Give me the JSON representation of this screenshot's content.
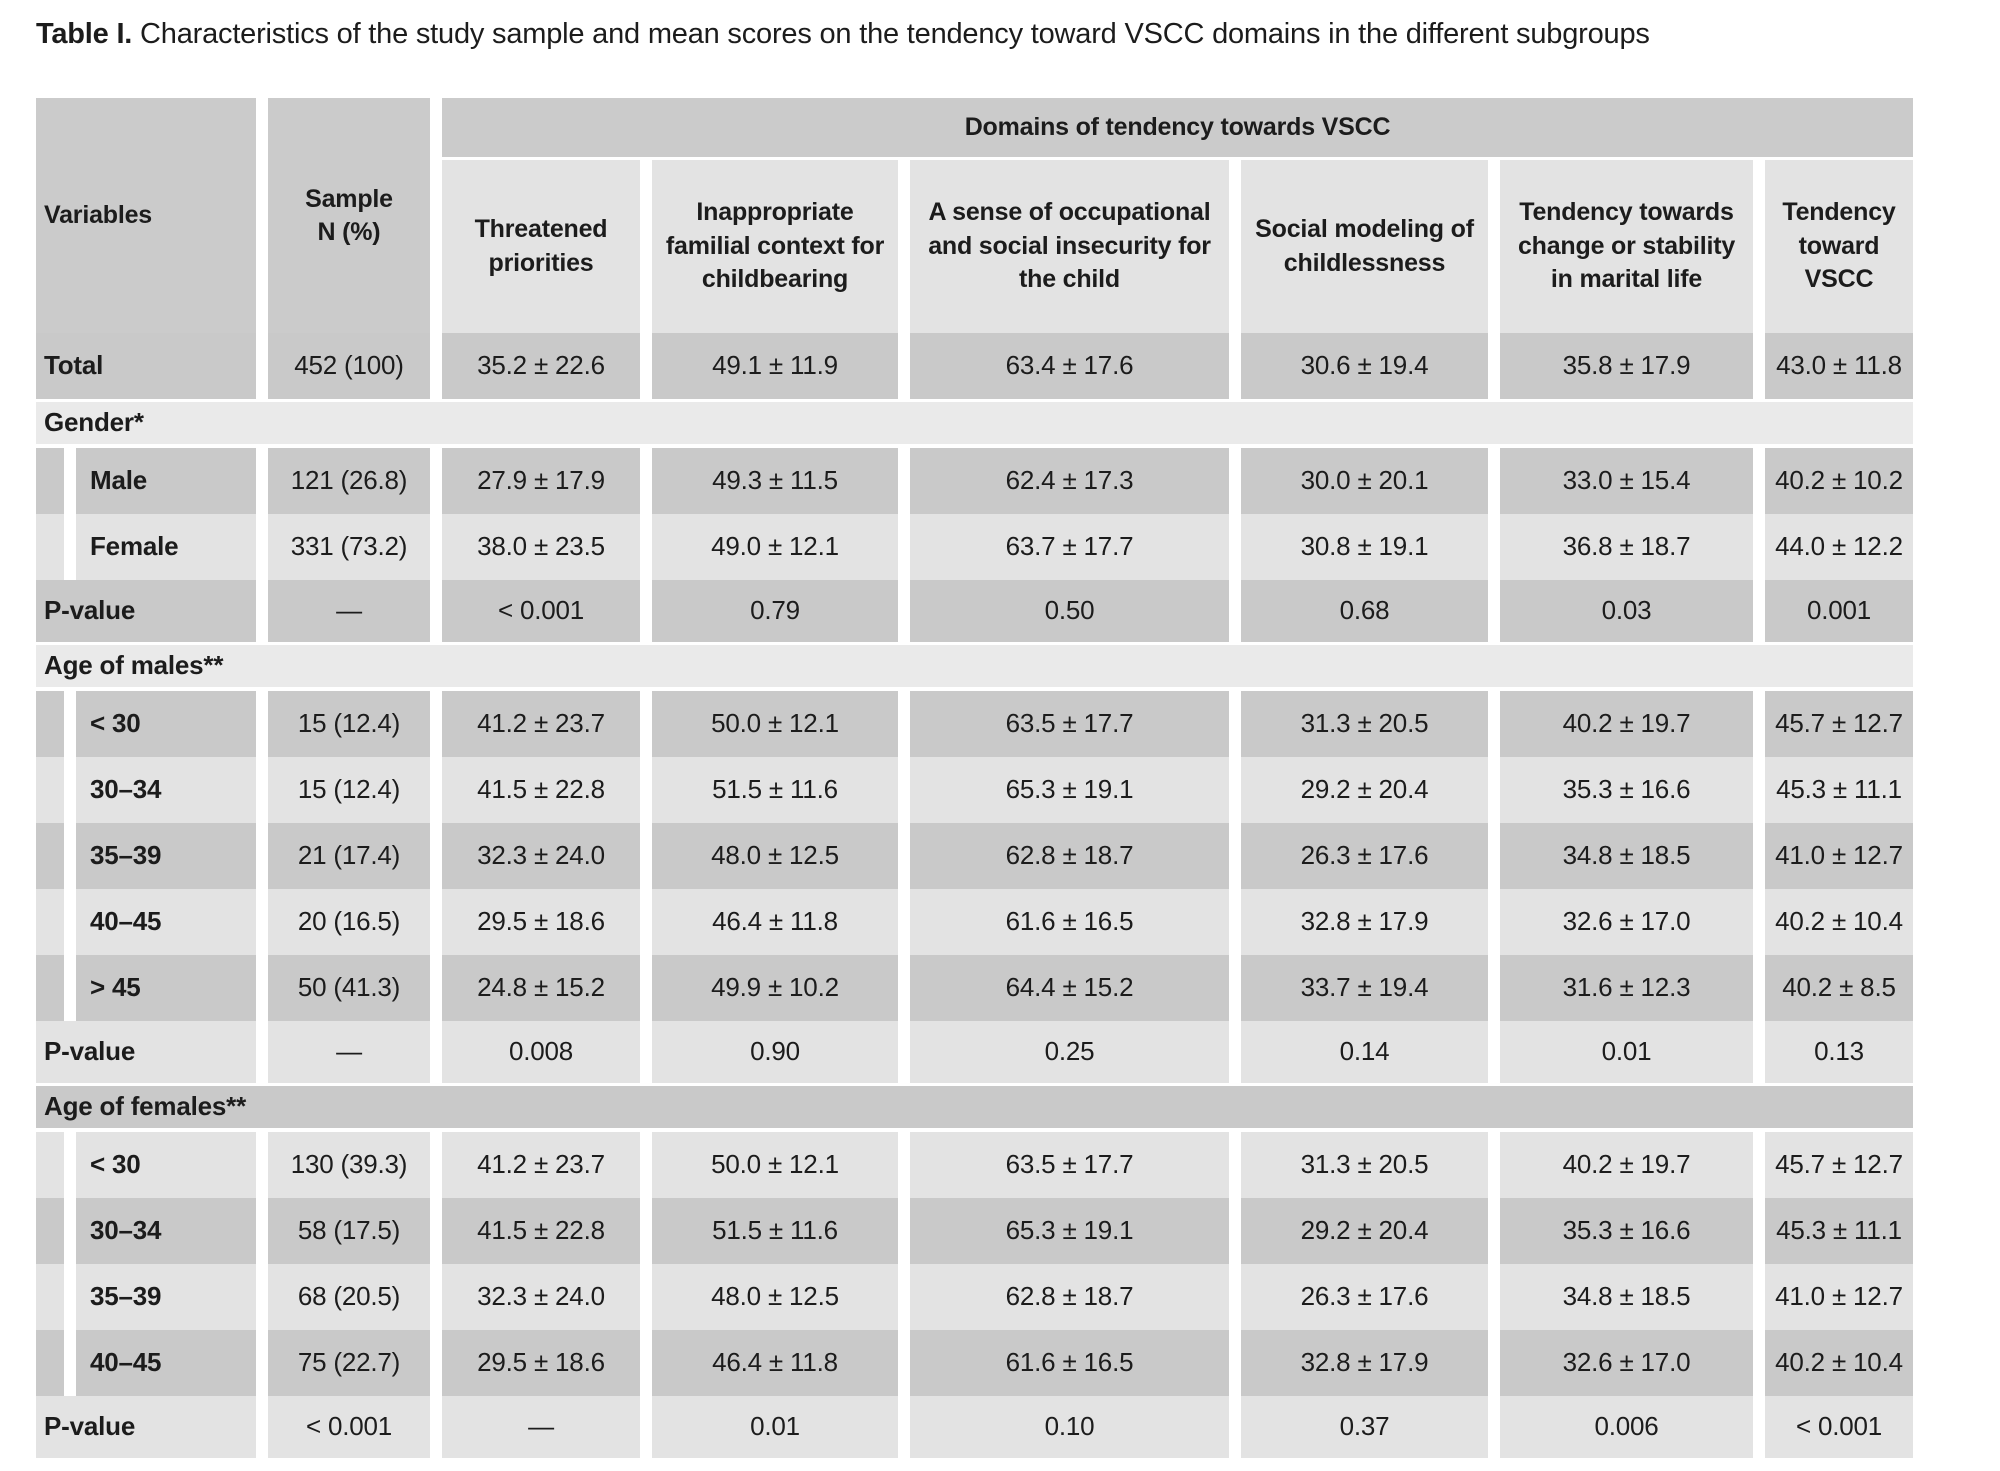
{
  "title": {
    "label": "Table I.",
    "text": " Characteristics of the study sample and mean scores on the tendency toward VSCC domains in the different subgroups"
  },
  "table": {
    "header": {
      "variables": "Variables",
      "sample": "Sample\nN (%)",
      "domains_group": "Domains of tendency towards VSCC",
      "domain_columns": [
        "Threatened priorities",
        "Inappropriate familial context for childbearing",
        "A sense of occupational and social insecurity for the child",
        "Social modeling of childlessness",
        "Tendency towards change or stability in marital life",
        "Tendency toward VSCC"
      ]
    },
    "rows": [
      {
        "type": "data",
        "shade": "dark",
        "indent": false,
        "label": "Total",
        "values": [
          "452 (100)",
          "35.2 ± 22.6",
          "49.1 ± 11.9",
          "63.4 ± 17.6",
          "30.6 ± 19.4",
          "35.8 ± 17.9",
          "43.0 ± 11.8"
        ]
      },
      {
        "type": "band",
        "shade": "light",
        "label": "Gender*"
      },
      {
        "type": "data",
        "shade": "dark",
        "indent": true,
        "label": "Male",
        "values": [
          "121 (26.8)",
          "27.9 ± 17.9",
          "49.3 ± 11.5",
          "62.4 ± 17.3",
          "30.0 ± 20.1",
          "33.0 ± 15.4",
          "40.2 ± 10.2"
        ]
      },
      {
        "type": "data",
        "shade": "light",
        "indent": true,
        "label": "Female",
        "values": [
          "331 (73.2)",
          "38.0 ± 23.5",
          "49.0 ± 12.1",
          "63.7 ± 17.7",
          "30.8 ± 19.1",
          "36.8 ± 18.7",
          "44.0 ± 12.2"
        ]
      },
      {
        "type": "pvalue",
        "shade": "dark",
        "indent": false,
        "label": "P-value",
        "values": [
          "—",
          "< 0.001",
          "0.79",
          "0.50",
          "0.68",
          "0.03",
          "0.001"
        ]
      },
      {
        "type": "band",
        "shade": "light",
        "label": "Age of males**"
      },
      {
        "type": "data",
        "shade": "dark",
        "indent": true,
        "label": "< 30",
        "values": [
          "15 (12.4)",
          "41.2 ± 23.7",
          "50.0 ± 12.1",
          "63.5 ± 17.7",
          "31.3 ± 20.5",
          "40.2 ± 19.7",
          "45.7 ± 12.7"
        ]
      },
      {
        "type": "data",
        "shade": "light",
        "indent": true,
        "label": "30–34",
        "values": [
          "15 (12.4)",
          "41.5 ± 22.8",
          "51.5 ± 11.6",
          "65.3 ± 19.1",
          "29.2 ± 20.4",
          "35.3 ± 16.6",
          "45.3 ± 11.1"
        ]
      },
      {
        "type": "data",
        "shade": "dark",
        "indent": true,
        "label": "35–39",
        "values": [
          "21 (17.4)",
          "32.3 ± 24.0",
          "48.0 ± 12.5",
          "62.8 ± 18.7",
          "26.3 ± 17.6",
          "34.8 ± 18.5",
          "41.0 ± 12.7"
        ]
      },
      {
        "type": "data",
        "shade": "light",
        "indent": true,
        "label": "40–45",
        "values": [
          "20 (16.5)",
          "29.5 ± 18.6",
          "46.4 ± 11.8",
          "61.6 ± 16.5",
          "32.8 ± 17.9",
          "32.6 ± 17.0",
          "40.2 ± 10.4"
        ]
      },
      {
        "type": "data",
        "shade": "dark",
        "indent": true,
        "label": "> 45",
        "values": [
          "50 (41.3)",
          "24.8 ± 15.2",
          "49.9 ± 10.2",
          "64.4 ± 15.2",
          "33.7 ± 19.4",
          "31.6 ± 12.3",
          "40.2 ± 8.5"
        ]
      },
      {
        "type": "pvalue",
        "shade": "light",
        "indent": false,
        "label": "P-value",
        "values": [
          "—",
          "0.008",
          "0.90",
          "0.25",
          "0.14",
          "0.01",
          "0.13"
        ]
      },
      {
        "type": "band",
        "shade": "dark",
        "label": "Age of females**"
      },
      {
        "type": "data",
        "shade": "light",
        "indent": true,
        "label": "< 30",
        "values": [
          "130 (39.3)",
          "41.2 ± 23.7",
          "50.0 ± 12.1",
          "63.5 ± 17.7",
          "31.3 ± 20.5",
          "40.2 ± 19.7",
          "45.7 ± 12.7"
        ]
      },
      {
        "type": "data",
        "shade": "dark",
        "indent": true,
        "label": "30–34",
        "values": [
          "58 (17.5)",
          "41.5 ± 22.8",
          "51.5 ± 11.6",
          "65.3 ± 19.1",
          "29.2 ± 20.4",
          "35.3 ± 16.6",
          "45.3 ± 11.1"
        ]
      },
      {
        "type": "data",
        "shade": "light",
        "indent": true,
        "label": "35–39",
        "values": [
          "68 (20.5)",
          "32.3 ± 24.0",
          "48.0 ± 12.5",
          "62.8 ± 18.7",
          "26.3 ± 17.6",
          "34.8 ± 18.5",
          "41.0 ± 12.7"
        ]
      },
      {
        "type": "data",
        "shade": "dark",
        "indent": true,
        "label": "40–45",
        "values": [
          "75 (22.7)",
          "29.5 ± 18.6",
          "46.4 ± 11.8",
          "61.6 ± 16.5",
          "32.8 ± 17.9",
          "32.6 ± 17.0",
          "40.2 ± 10.4"
        ]
      },
      {
        "type": "pvalue",
        "shade": "light",
        "indent": false,
        "label": "P-value",
        "values": [
          "< 0.001",
          "—",
          "0.01",
          "0.10",
          "0.37",
          "0.006",
          "< 0.001"
        ]
      }
    ]
  }
}
